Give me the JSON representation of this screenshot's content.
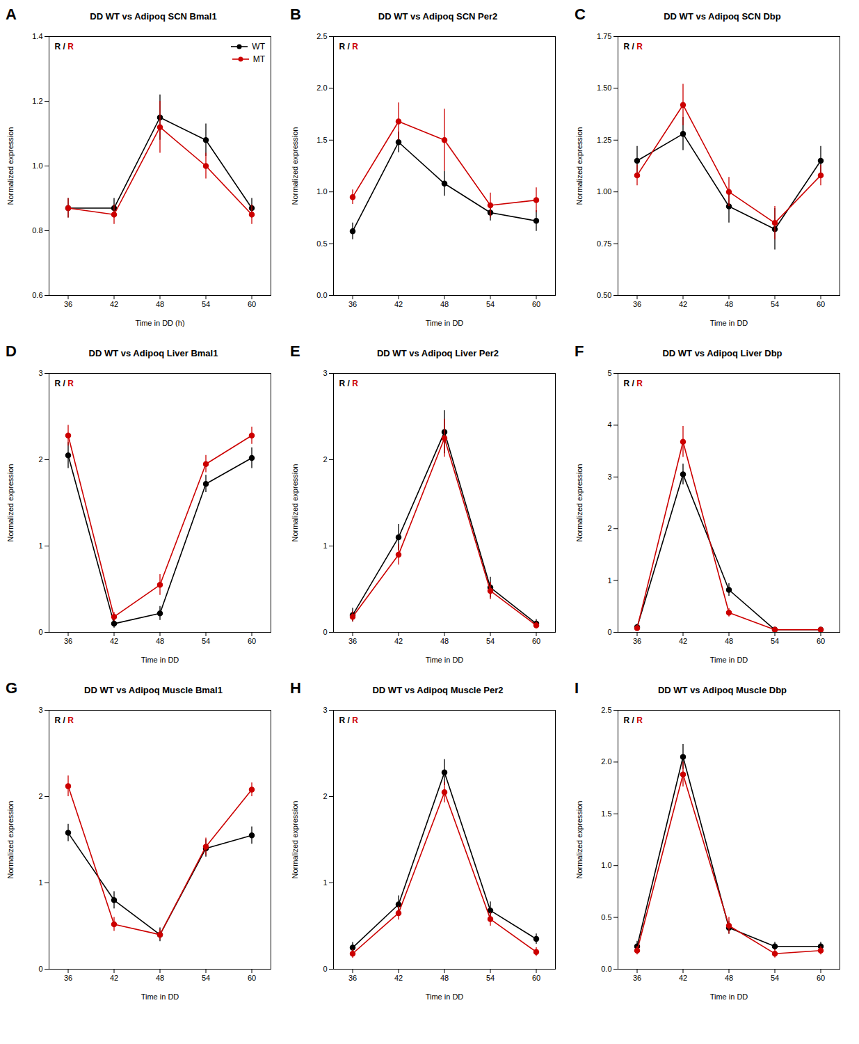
{
  "chart_data": [
    {
      "type": "line",
      "panel_label": "A",
      "title": "DD WT vs Adipoq SCN Bmal1",
      "xlabel": "Time in DD (h)",
      "ylabel": "Normalized expression",
      "x": [
        36,
        42,
        48,
        54,
        60
      ],
      "xlim": [
        33.5,
        62.5
      ],
      "xticks": [
        36,
        42,
        48,
        54,
        60
      ],
      "ylim": [
        0.6,
        1.4
      ],
      "yticks": [
        0.6,
        0.8,
        {
          "value": 1.0,
          "label": "1.0"
        },
        1.2,
        1.4
      ],
      "grid": false,
      "legend": "upper right",
      "annotations": [
        {
          "text": "R /",
          "color": "#000000"
        },
        {
          "text": "R",
          "color": "#cc0000"
        }
      ],
      "series": [
        {
          "name": "WT",
          "color": "#000000",
          "marker": "o",
          "values": [
            0.87,
            0.87,
            1.15,
            1.08,
            0.87
          ],
          "errors": [
            0.03,
            0.03,
            0.07,
            0.05,
            0.03
          ]
        },
        {
          "name": "MT",
          "color": "#cc0000",
          "marker": "o",
          "values": [
            0.87,
            0.85,
            1.12,
            1.0,
            0.85
          ],
          "errors": [
            0.03,
            0.03,
            0.08,
            0.04,
            0.03
          ]
        }
      ]
    },
    {
      "type": "line",
      "panel_label": "B",
      "title": "DD WT vs Adipoq SCN Per2",
      "xlabel": "Time in DD",
      "ylabel": "Normalized expression",
      "x": [
        36,
        42,
        48,
        54,
        60
      ],
      "xlim": [
        33.5,
        62.5
      ],
      "xticks": [
        36,
        42,
        48,
        54,
        60
      ],
      "ylim": [
        0.0,
        2.5
      ],
      "yticks": [
        {
          "value": 0.0,
          "label": "0.0"
        },
        0.5,
        {
          "value": 1.0,
          "label": "1.0"
        },
        1.5,
        {
          "value": 2.0,
          "label": "2.0"
        },
        2.5
      ],
      "grid": false,
      "annotations": [
        {
          "text": "R /",
          "color": "#000000"
        },
        {
          "text": "R",
          "color": "#cc0000"
        }
      ],
      "series": [
        {
          "name": "WT",
          "color": "#000000",
          "marker": "o",
          "values": [
            0.62,
            1.48,
            1.08,
            0.8,
            0.72
          ],
          "errors": [
            0.08,
            0.1,
            0.12,
            0.08,
            0.1
          ]
        },
        {
          "name": "MT",
          "color": "#cc0000",
          "marker": "o",
          "values": [
            0.95,
            1.68,
            1.5,
            0.87,
            0.92
          ],
          "errors": [
            0.07,
            0.18,
            0.3,
            0.12,
            0.12
          ]
        }
      ]
    },
    {
      "type": "line",
      "panel_label": "C",
      "title": "DD WT vs Adipoq SCN Dbp",
      "xlabel": "Time in DD",
      "ylabel": "Normalized expression",
      "x": [
        36,
        42,
        48,
        54,
        60
      ],
      "xlim": [
        33.5,
        62.5
      ],
      "xticks": [
        36,
        42,
        48,
        54,
        60
      ],
      "ylim": [
        0.5,
        1.75
      ],
      "yticks": [
        {
          "value": 0.5,
          "label": "0.50"
        },
        0.75,
        {
          "value": 1.0,
          "label": "1.00"
        },
        1.25,
        {
          "value": 1.5,
          "label": "1.50"
        },
        1.75
      ],
      "grid": false,
      "annotations": [
        {
          "text": "R /",
          "color": "#000000"
        },
        {
          "text": "R",
          "color": "#cc0000"
        }
      ],
      "series": [
        {
          "name": "WT",
          "color": "#000000",
          "marker": "o",
          "values": [
            1.15,
            1.28,
            0.93,
            0.82,
            1.15
          ],
          "errors": [
            0.07,
            0.08,
            0.08,
            0.1,
            0.07
          ]
        },
        {
          "name": "MT",
          "color": "#cc0000",
          "marker": "o",
          "values": [
            1.08,
            1.42,
            1.0,
            0.85,
            1.08
          ],
          "errors": [
            0.05,
            0.1,
            0.07,
            0.08,
            0.05
          ]
        }
      ]
    },
    {
      "type": "line",
      "panel_label": "D",
      "title": "DD WT vs Adipoq Liver Bmal1",
      "xlabel": "Time in DD",
      "ylabel": "Normalized expression",
      "x": [
        36,
        42,
        48,
        54,
        60
      ],
      "xlim": [
        33.5,
        62.5
      ],
      "xticks": [
        36,
        42,
        48,
        54,
        60
      ],
      "ylim": [
        0.0,
        3.0
      ],
      "yticks": [
        0,
        1,
        2,
        3
      ],
      "grid": false,
      "annotations": [
        {
          "text": "R /",
          "color": "#000000"
        },
        {
          "text": "R",
          "color": "#cc0000"
        }
      ],
      "series": [
        {
          "name": "WT",
          "color": "#000000",
          "marker": "o",
          "values": [
            2.05,
            0.1,
            0.22,
            1.72,
            2.02
          ],
          "errors": [
            0.15,
            0.05,
            0.08,
            0.1,
            0.12
          ]
        },
        {
          "name": "MT",
          "color": "#cc0000",
          "marker": "o",
          "values": [
            2.28,
            0.18,
            0.55,
            1.95,
            2.28
          ],
          "errors": [
            0.12,
            0.05,
            0.12,
            0.1,
            0.1
          ]
        }
      ]
    },
    {
      "type": "line",
      "panel_label": "E",
      "title": "DD WT vs Adipoq Liver Per2",
      "xlabel": "Time in DD",
      "ylabel": "Normalized expression",
      "x": [
        36,
        42,
        48,
        54,
        60
      ],
      "xlim": [
        33.5,
        62.5
      ],
      "xticks": [
        36,
        42,
        48,
        54,
        60
      ],
      "ylim": [
        0.0,
        3.0
      ],
      "yticks": [
        0,
        1,
        2,
        3
      ],
      "grid": false,
      "annotations": [
        {
          "text": "R /",
          "color": "#000000"
        },
        {
          "text": "R",
          "color": "#cc0000"
        }
      ],
      "series": [
        {
          "name": "WT",
          "color": "#000000",
          "marker": "o",
          "values": [
            0.2,
            1.1,
            2.32,
            0.52,
            0.1
          ],
          "errors": [
            0.08,
            0.15,
            0.25,
            0.12,
            0.05
          ]
        },
        {
          "name": "MT",
          "color": "#cc0000",
          "marker": "o",
          "values": [
            0.18,
            0.9,
            2.25,
            0.48,
            0.08
          ],
          "errors": [
            0.06,
            0.12,
            0.22,
            0.1,
            0.04
          ]
        }
      ]
    },
    {
      "type": "line",
      "panel_label": "F",
      "title": "DD WT vs Adipoq Liver Dbp",
      "xlabel": "Time in DD",
      "ylabel": "Normalized expression",
      "x": [
        36,
        42,
        48,
        54,
        60
      ],
      "xlim": [
        33.5,
        62.5
      ],
      "xticks": [
        36,
        42,
        48,
        54,
        60
      ],
      "ylim": [
        0.0,
        5.0
      ],
      "yticks": [
        0,
        1,
        2,
        3,
        4,
        5
      ],
      "grid": false,
      "annotations": [
        {
          "text": "R /",
          "color": "#000000"
        },
        {
          "text": "R",
          "color": "#cc0000"
        }
      ],
      "series": [
        {
          "name": "WT",
          "color": "#000000",
          "marker": "o",
          "values": [
            0.1,
            3.05,
            0.82,
            0.05,
            0.05
          ],
          "errors": [
            0.05,
            0.2,
            0.12,
            0.03,
            0.03
          ]
        },
        {
          "name": "MT",
          "color": "#cc0000",
          "marker": "o",
          "values": [
            0.08,
            3.68,
            0.38,
            0.05,
            0.05
          ],
          "errors": [
            0.04,
            0.3,
            0.08,
            0.03,
            0.03
          ]
        }
      ]
    },
    {
      "type": "line",
      "panel_label": "G",
      "title": "DD WT vs Adipoq Muscle Bmal1",
      "xlabel": "Time in DD",
      "ylabel": "Normalized expression",
      "x": [
        36,
        42,
        48,
        54,
        60
      ],
      "xlim": [
        33.5,
        62.5
      ],
      "xticks": [
        36,
        42,
        48,
        54,
        60
      ],
      "ylim": [
        0.0,
        3.0
      ],
      "yticks": [
        0,
        1,
        2,
        3
      ],
      "grid": false,
      "annotations": [
        {
          "text": "R /",
          "color": "#000000"
        },
        {
          "text": "R",
          "color": "#cc0000"
        }
      ],
      "series": [
        {
          "name": "WT",
          "color": "#000000",
          "marker": "o",
          "values": [
            1.58,
            0.8,
            0.4,
            1.4,
            1.55
          ],
          "errors": [
            0.1,
            0.1,
            0.08,
            0.1,
            0.1
          ]
        },
        {
          "name": "MT",
          "color": "#cc0000",
          "marker": "o",
          "values": [
            2.12,
            0.52,
            0.4,
            1.42,
            2.08
          ],
          "errors": [
            0.12,
            0.08,
            0.06,
            0.1,
            0.08
          ]
        }
      ]
    },
    {
      "type": "line",
      "panel_label": "H",
      "title": "DD WT vs Adipoq Muscle Per2",
      "xlabel": "Time in DD",
      "ylabel": "Normalized expression",
      "x": [
        36,
        42,
        48,
        54,
        60
      ],
      "xlim": [
        33.5,
        62.5
      ],
      "xticks": [
        36,
        42,
        48,
        54,
        60
      ],
      "ylim": [
        0.0,
        3.0
      ],
      "yticks": [
        0,
        1,
        2,
        3
      ],
      "grid": false,
      "annotations": [
        {
          "text": "R /",
          "color": "#000000"
        },
        {
          "text": "R",
          "color": "#cc0000"
        }
      ],
      "series": [
        {
          "name": "WT",
          "color": "#000000",
          "marker": "o",
          "values": [
            0.25,
            0.75,
            2.28,
            0.68,
            0.35
          ],
          "errors": [
            0.06,
            0.1,
            0.15,
            0.1,
            0.06
          ]
        },
        {
          "name": "MT",
          "color": "#cc0000",
          "marker": "o",
          "values": [
            0.18,
            0.65,
            2.05,
            0.58,
            0.2
          ],
          "errors": [
            0.05,
            0.08,
            0.12,
            0.08,
            0.05
          ]
        }
      ]
    },
    {
      "type": "line",
      "panel_label": "I",
      "title": "DD WT vs Adipoq Muscle Dbp",
      "xlabel": "Time in DD",
      "ylabel": "Normalized expression",
      "x": [
        36,
        42,
        48,
        54,
        60
      ],
      "xlim": [
        33.5,
        62.5
      ],
      "xticks": [
        36,
        42,
        48,
        54,
        60
      ],
      "ylim": [
        0.0,
        2.5
      ],
      "yticks": [
        {
          "value": 0.0,
          "label": "0.0"
        },
        0.5,
        {
          "value": 1.0,
          "label": "1.0"
        },
        1.5,
        {
          "value": 2.0,
          "label": "2.0"
        },
        2.5
      ],
      "grid": false,
      "annotations": [
        {
          "text": "R /",
          "color": "#000000"
        },
        {
          "text": "R",
          "color": "#cc0000"
        }
      ],
      "series": [
        {
          "name": "WT",
          "color": "#000000",
          "marker": "o",
          "values": [
            0.22,
            2.05,
            0.4,
            0.22,
            0.22
          ],
          "errors": [
            0.05,
            0.12,
            0.06,
            0.04,
            0.04
          ]
        },
        {
          "name": "MT",
          "color": "#cc0000",
          "marker": "o",
          "values": [
            0.18,
            1.88,
            0.42,
            0.15,
            0.18
          ],
          "errors": [
            0.04,
            0.12,
            0.08,
            0.04,
            0.04
          ]
        }
      ]
    }
  ]
}
